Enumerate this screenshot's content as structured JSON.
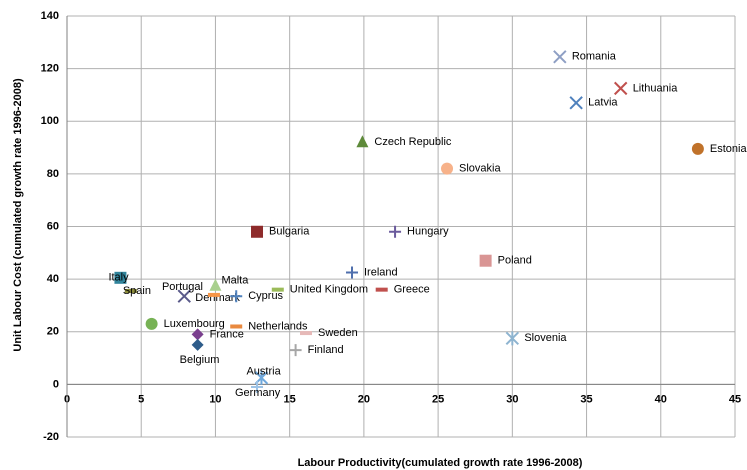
{
  "chart_data": {
    "type": "scatter",
    "x_label": "Labour Productivity(cumulated growth rate 1996-2008)",
    "y_label": "Unit Labour Cost (cumulated growth rate 1996-2008)",
    "xlim": [
      0,
      45
    ],
    "xticks": [
      0,
      5,
      10,
      15,
      20,
      25,
      30,
      35,
      40,
      45
    ],
    "ylim": [
      -20,
      140
    ],
    "yticks": [
      -20,
      0,
      20,
      40,
      60,
      80,
      100,
      120,
      140
    ],
    "grid": true,
    "series": [
      {
        "name": "Romania",
        "color": "#8e9fc4",
        "marker": "x",
        "x": [
          33.2
        ],
        "values": [
          124.5
        ]
      },
      {
        "name": "Lithuania",
        "color": "#c0504d",
        "marker": "x",
        "x": [
          37.3
        ],
        "values": [
          112.5
        ]
      },
      {
        "name": "Latvia",
        "color": "#4f81bd",
        "marker": "x",
        "x": [
          34.3
        ],
        "values": [
          107
        ]
      },
      {
        "name": "Estonia",
        "color": "#c0722a",
        "marker": "circle",
        "x": [
          42.5
        ],
        "values": [
          89.5
        ]
      },
      {
        "name": "Czech Republic",
        "color": "#5e8a3a",
        "marker": "triangle",
        "x": [
          19.9
        ],
        "values": [
          92
        ]
      },
      {
        "name": "Slovakia",
        "color": "#f7b28a",
        "marker": "circle",
        "x": [
          25.6
        ],
        "values": [
          82
        ]
      },
      {
        "name": "Bulgaria",
        "color": "#8e2b2b",
        "marker": "square",
        "x": [
          12.8
        ],
        "values": [
          58
        ]
      },
      {
        "name": "Hungary",
        "color": "#6a5a9c",
        "marker": "plus",
        "x": [
          22.1
        ],
        "values": [
          58
        ]
      },
      {
        "name": "Poland",
        "color": "#d99594",
        "marker": "square",
        "x": [
          28.2
        ],
        "values": [
          47
        ]
      },
      {
        "name": "Ireland",
        "color": "#4f6fad",
        "marker": "plus",
        "x": [
          19.2
        ],
        "values": [
          42.5
        ]
      },
      {
        "name": "Greece",
        "color": "#c0504d",
        "marker": "dash",
        "x": [
          21.2
        ],
        "values": [
          36
        ]
      },
      {
        "name": "United Kingdom",
        "color": "#9bbb59",
        "marker": "dash",
        "x": [
          14.2
        ],
        "values": [
          36
        ]
      },
      {
        "name": "Slovenia",
        "color": "#8eb4d0",
        "marker": "star",
        "x": [
          30
        ],
        "values": [
          17.5
        ]
      },
      {
        "name": "Italy",
        "color": "#31849b",
        "marker": "square",
        "x": [
          3.6
        ],
        "values": [
          40.5
        ]
      },
      {
        "name": "Spain",
        "color": "#8a8a3a",
        "marker": "dash",
        "x": [
          4.3
        ],
        "values": [
          35.5
        ]
      },
      {
        "name": "Denmark",
        "color": "#5a5a8a",
        "marker": "x",
        "x": [
          7.9
        ],
        "values": [
          33.5
        ]
      },
      {
        "name": "Portugal",
        "color": "#f79646",
        "marker": "dash",
        "x": [
          9.9
        ],
        "values": [
          34
        ]
      },
      {
        "name": "Malta",
        "color": "#a9d08e",
        "marker": "triangle",
        "x": [
          10
        ],
        "values": [
          37.5
        ]
      },
      {
        "name": "Cyprus",
        "color": "#4f81bd",
        "marker": "plus",
        "x": [
          11.4
        ],
        "values": [
          33.5
        ]
      },
      {
        "name": "Luxembourg",
        "color": "#77b255",
        "marker": "circle",
        "x": [
          5.7
        ],
        "values": [
          23
        ]
      },
      {
        "name": "Netherlands",
        "color": "#e9893f",
        "marker": "dash",
        "x": [
          11.4
        ],
        "values": [
          22
        ]
      },
      {
        "name": "France",
        "color": "#7a3f8e",
        "marker": "diamond",
        "x": [
          8.8
        ],
        "values": [
          19
        ]
      },
      {
        "name": "Belgium",
        "color": "#2e5c8a",
        "marker": "diamond",
        "x": [
          8.8
        ],
        "values": [
          15
        ]
      },
      {
        "name": "Sweden",
        "color": "#e6b9b8",
        "marker": "dash",
        "x": [
          16.1
        ],
        "values": [
          19.5
        ]
      },
      {
        "name": "Finland",
        "color": "#a6a6a6",
        "marker": "plus",
        "x": [
          15.4
        ],
        "values": [
          13
        ]
      },
      {
        "name": "Austria",
        "color": "#6fa8dc",
        "marker": "star",
        "x": [
          13.1
        ],
        "values": [
          2.5
        ]
      },
      {
        "name": "Germany",
        "color": "#9dc3e6",
        "marker": "plus",
        "x": [
          12.8
        ],
        "values": [
          -1
        ]
      }
    ]
  }
}
